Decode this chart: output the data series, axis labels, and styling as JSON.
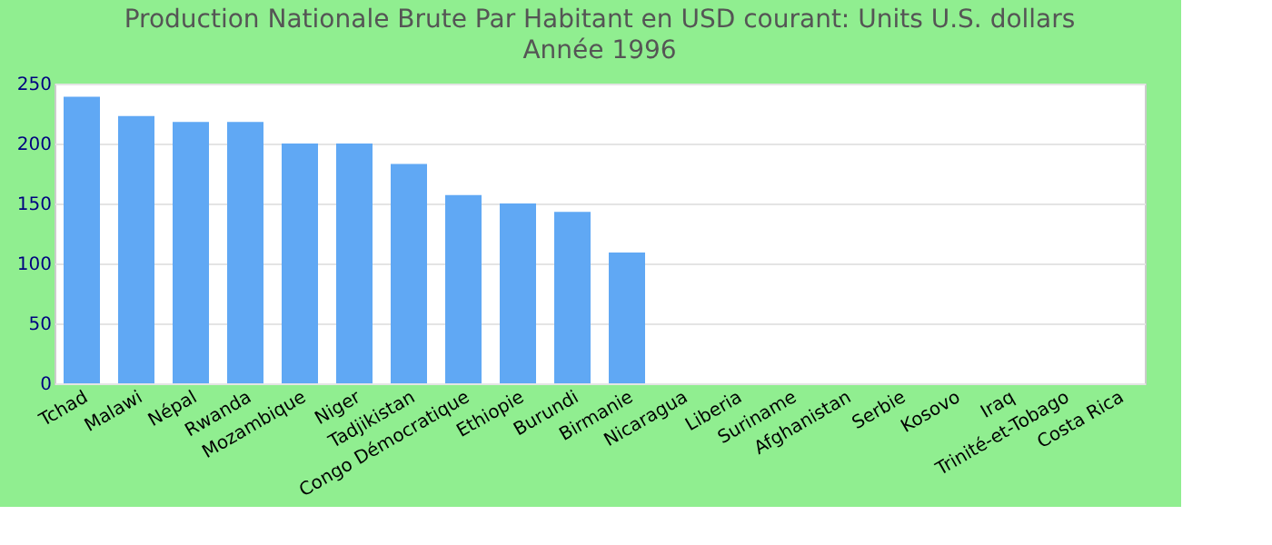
{
  "chart_data": {
    "type": "bar",
    "title": "Production Nationale Brute Par Habitant en USD courant: Units U.S. dollars",
    "subtitle": "Année 1996",
    "categories": [
      "Tchad",
      "Malawi",
      "Népal",
      "Rwanda",
      "Mozambique",
      "Niger",
      "Tadjikistan",
      "Congo Démocratique",
      "Ethiopie",
      "Burundi",
      "Birmanie",
      "Nicaragua",
      "Liberia",
      "Suriname",
      "Afghanistan",
      "Serbie",
      "Kosovo",
      "Iraq",
      "Trinité-et-Tobago",
      "Costa Rica"
    ],
    "values": [
      239,
      223,
      218,
      218,
      200,
      200,
      183,
      157,
      150,
      143,
      109,
      null,
      null,
      null,
      null,
      null,
      null,
      null,
      null,
      null
    ],
    "color": "#60a8f4",
    "ylim": [
      0,
      250
    ],
    "yticks": [
      0,
      50,
      100,
      150,
      200,
      250
    ],
    "grid": "y"
  }
}
